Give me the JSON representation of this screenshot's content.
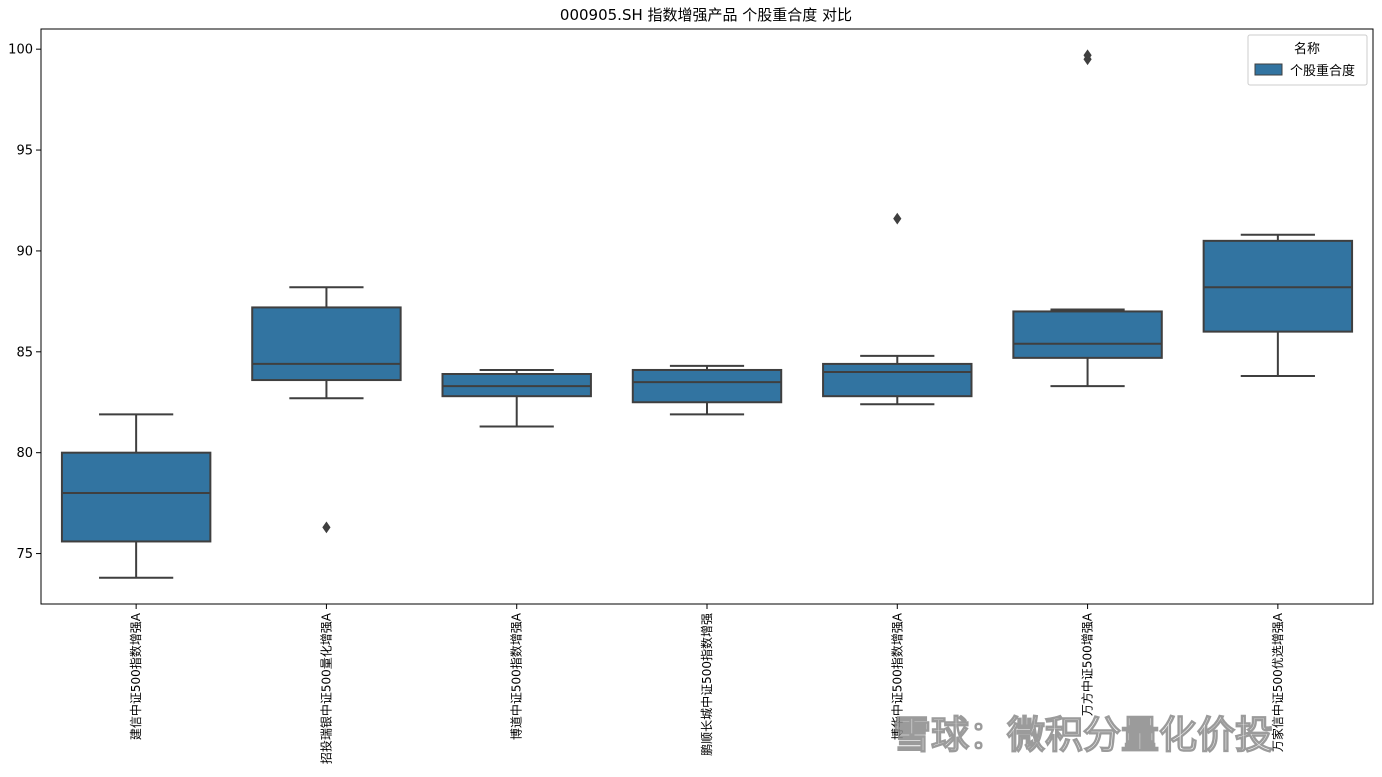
{
  "chart_data": {
    "type": "box",
    "title": "000905.SH 指数增强产品 个股重合度 对比",
    "xlabel": "",
    "ylabel": "",
    "ylim": [
      72.5,
      101.0
    ],
    "yticks": [
      75,
      80,
      85,
      90,
      95,
      100
    ],
    "grid": false,
    "legend": {
      "title": "名称",
      "entries": [
        "个股重合度"
      ],
      "placement": "top-right"
    },
    "color": "#3274a1",
    "line_color": "#3f3f3f",
    "categories": [
      "建信中证500指数增强A",
      "招投瑞银中证500量化增强A",
      "博道中证500指数增强A",
      "鹏顺长城中证500指数增强",
      "博华中证500指数增强A",
      "万方中证500增强A",
      "万家信中证500优选增强A"
    ],
    "boxes": [
      {
        "whisker_low": 73.8,
        "q1": 75.6,
        "median": 78.0,
        "q3": 80.0,
        "whisker_high": 81.9,
        "outliers": []
      },
      {
        "whisker_low": 82.7,
        "q1": 83.6,
        "median": 84.4,
        "q3": 87.2,
        "whisker_high": 88.2,
        "outliers": [
          76.3
        ]
      },
      {
        "whisker_low": 81.3,
        "q1": 82.8,
        "median": 83.3,
        "q3": 83.9,
        "whisker_high": 84.1,
        "outliers": []
      },
      {
        "whisker_low": 81.9,
        "q1": 82.5,
        "median": 83.5,
        "q3": 84.1,
        "whisker_high": 84.3,
        "outliers": []
      },
      {
        "whisker_low": 82.4,
        "q1": 82.8,
        "median": 84.0,
        "q3": 84.4,
        "whisker_high": 84.8,
        "outliers": [
          91.6
        ]
      },
      {
        "whisker_low": 83.3,
        "q1": 84.7,
        "median": 85.4,
        "q3": 87.0,
        "whisker_high": 87.1,
        "outliers": [
          99.5,
          99.7
        ]
      },
      {
        "whisker_low": 83.8,
        "q1": 86.0,
        "median": 88.2,
        "q3": 90.5,
        "whisker_high": 90.8,
        "outliers": []
      }
    ]
  },
  "watermark": "雪球：微积分量化价投"
}
